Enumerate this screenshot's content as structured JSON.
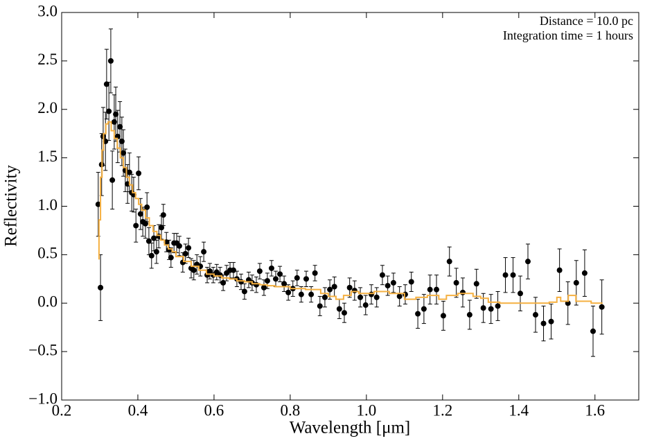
{
  "chart_data": {
    "type": "scatter",
    "xlabel": "Wavelength [μm]",
    "ylabel": "Reflectivity",
    "annotations": [
      "Distance = 10.0 pc",
      "Integration time = 1 hours"
    ],
    "xlim": [
      0.2,
      1.715
    ],
    "ylim": [
      -1.0,
      3.0
    ],
    "xticks": [
      0.2,
      0.4,
      0.6,
      0.8,
      {
        "value": 1.0,
        "label": "1.0"
      },
      1.2,
      1.4,
      1.6
    ],
    "yticks": [
      {
        "value": -1.0,
        "label": "−1.0"
      },
      {
        "value": -0.5,
        "label": "−0.5"
      },
      {
        "value": 0.0,
        "label": "0.0"
      },
      0.5,
      {
        "value": 1.0,
        "label": "1.0"
      },
      1.5,
      {
        "value": 2.0,
        "label": "2.0"
      },
      2.5,
      {
        "value": 3.0,
        "label": "3.0"
      }
    ],
    "series": [
      {
        "type": "errorbar",
        "color": "#000000",
        "x": [
          0.296,
          0.302,
          0.305,
          0.309,
          0.315,
          0.318,
          0.324,
          0.329,
          0.333,
          0.338,
          0.342,
          0.347,
          0.353,
          0.358,
          0.362,
          0.367,
          0.373,
          0.378,
          0.384,
          0.389,
          0.395,
          0.402,
          0.407,
          0.413,
          0.42,
          0.424,
          0.429,
          0.436,
          0.442,
          0.449,
          0.455,
          0.462,
          0.467,
          0.475,
          0.482,
          0.487,
          0.495,
          0.502,
          0.509,
          0.518,
          0.525,
          0.533,
          0.54,
          0.547,
          0.555,
          0.564,
          0.573,
          0.582,
          0.589,
          0.598,
          0.607,
          0.616,
          0.624,
          0.633,
          0.642,
          0.651,
          0.66,
          0.671,
          0.68,
          0.691,
          0.7,
          0.711,
          0.72,
          0.731,
          0.74,
          0.751,
          0.762,
          0.773,
          0.784,
          0.795,
          0.807,
          0.818,
          0.829,
          0.842,
          0.855,
          0.865,
          0.878,
          0.891,
          0.904,
          0.916,
          0.929,
          0.942,
          0.956,
          0.969,
          0.984,
          0.998,
          1.013,
          1.027,
          1.042,
          1.056,
          1.071,
          1.087,
          1.102,
          1.118,
          1.135,
          1.151,
          1.167,
          1.184,
          1.202,
          1.218,
          1.236,
          1.253,
          1.271,
          1.289,
          1.307,
          1.327,
          1.345,
          1.365,
          1.385,
          1.404,
          1.424,
          1.444,
          1.465,
          1.485,
          1.507,
          1.529,
          1.551,
          1.573,
          1.595,
          1.618
        ],
        "values": [
          1.02,
          0.16,
          1.43,
          1.72,
          1.67,
          2.26,
          1.98,
          2.5,
          1.27,
          1.87,
          1.95,
          1.72,
          1.82,
          1.67,
          1.55,
          1.37,
          1.23,
          1.35,
          1.14,
          1.12,
          0.8,
          1.34,
          0.92,
          0.84,
          0.82,
          0.99,
          0.64,
          0.49,
          0.67,
          0.53,
          0.69,
          0.78,
          0.91,
          0.63,
          0.55,
          0.47,
          0.62,
          0.62,
          0.59,
          0.42,
          0.51,
          0.57,
          0.36,
          0.34,
          0.4,
          0.38,
          0.53,
          0.29,
          0.33,
          0.29,
          0.32,
          0.29,
          0.21,
          0.31,
          0.34,
          0.34,
          0.25,
          0.22,
          0.12,
          0.24,
          0.21,
          0.19,
          0.33,
          0.16,
          0.23,
          0.36,
          0.25,
          0.3,
          0.2,
          0.11,
          0.15,
          0.26,
          0.09,
          0.25,
          0.09,
          0.31,
          -0.03,
          0.06,
          0.14,
          0.17,
          -0.06,
          -0.1,
          0.16,
          0.13,
          0.06,
          -0.02,
          0.09,
          0.06,
          0.29,
          0.18,
          0.21,
          0.07,
          0.09,
          0.22,
          -0.11,
          -0.06,
          0.14,
          0.14,
          -0.13,
          0.43,
          0.21,
          0.11,
          -0.12,
          0.2,
          -0.05,
          -0.06,
          -0.03,
          0.29,
          0.29,
          0.1,
          0.43,
          -0.12,
          -0.21,
          -0.19,
          0.34,
          0.0,
          0.21,
          0.31,
          -0.29,
          -0.04
        ],
        "errors": [
          0.33,
          0.34,
          0.32,
          0.3,
          0.3,
          0.36,
          0.3,
          0.33,
          0.3,
          0.28,
          0.28,
          0.27,
          0.26,
          0.25,
          0.24,
          0.22,
          0.2,
          0.2,
          0.19,
          0.18,
          0.17,
          0.17,
          0.16,
          0.15,
          0.15,
          0.15,
          0.14,
          0.13,
          0.13,
          0.12,
          0.12,
          0.12,
          0.11,
          0.1,
          0.1,
          0.1,
          0.1,
          0.1,
          0.1,
          0.1,
          0.1,
          0.1,
          0.1,
          0.1,
          0.1,
          0.1,
          0.1,
          0.08,
          0.08,
          0.08,
          0.08,
          0.08,
          0.08,
          0.08,
          0.08,
          0.08,
          0.08,
          0.08,
          0.08,
          0.08,
          0.08,
          0.08,
          0.08,
          0.08,
          0.08,
          0.08,
          0.08,
          0.08,
          0.08,
          0.08,
          0.08,
          0.08,
          0.08,
          0.08,
          0.08,
          0.08,
          0.1,
          0.1,
          0.1,
          0.1,
          0.1,
          0.1,
          0.1,
          0.1,
          0.1,
          0.1,
          0.1,
          0.1,
          0.1,
          0.1,
          0.1,
          0.1,
          0.1,
          0.1,
          0.15,
          0.15,
          0.15,
          0.15,
          0.15,
          0.15,
          0.15,
          0.15,
          0.15,
          0.15,
          0.15,
          0.15,
          0.15,
          0.18,
          0.18,
          0.18,
          0.18,
          0.18,
          0.18,
          0.18,
          0.22,
          0.22,
          0.23,
          0.24,
          0.26,
          0.28
        ]
      },
      {
        "type": "step",
        "color": "#f5b041",
        "x": [
          0.298,
          0.302,
          0.306,
          0.31,
          0.316,
          0.322,
          0.33,
          0.338,
          0.346,
          0.354,
          0.362,
          0.37,
          0.378,
          0.386,
          0.394,
          0.402,
          0.41,
          0.42,
          0.43,
          0.44,
          0.45,
          0.46,
          0.47,
          0.48,
          0.49,
          0.5,
          0.52,
          0.54,
          0.56,
          0.58,
          0.6,
          0.62,
          0.64,
          0.66,
          0.68,
          0.7,
          0.72,
          0.74,
          0.76,
          0.8,
          0.84,
          0.88,
          0.9,
          0.92,
          0.94,
          0.96,
          0.98,
          1.02,
          1.06,
          1.1,
          1.13,
          1.16,
          1.19,
          1.21,
          1.24,
          1.26,
          1.28,
          1.3,
          1.32,
          1.35,
          1.38,
          1.48,
          1.5,
          1.51,
          1.53,
          1.55,
          1.57,
          1.59,
          1.62
        ],
        "values": [
          0.45,
          0.86,
          1.3,
          1.58,
          1.75,
          1.85,
          1.87,
          1.78,
          1.7,
          1.6,
          1.5,
          1.4,
          1.3,
          1.22,
          1.14,
          1.08,
          1.02,
          0.96,
          0.88,
          0.8,
          0.74,
          0.7,
          0.65,
          0.6,
          0.56,
          0.53,
          0.48,
          0.43,
          0.38,
          0.34,
          0.3,
          0.28,
          0.26,
          0.25,
          0.23,
          0.22,
          0.2,
          0.19,
          0.18,
          0.17,
          0.15,
          0.14,
          0.1,
          0.07,
          0.04,
          0.08,
          0.12,
          0.1,
          0.12,
          0.1,
          0.04,
          0.06,
          0.08,
          0.04,
          0.08,
          0.1,
          0.1,
          0.07,
          0.05,
          0.01,
          0.0,
          0.0,
          0.01,
          0.06,
          0.02,
          0.08,
          0.02,
          0.02,
          0.0
        ]
      }
    ]
  }
}
